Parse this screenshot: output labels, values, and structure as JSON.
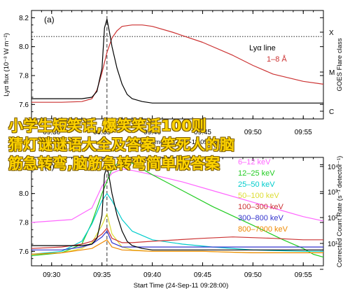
{
  "chart_data": [
    {
      "type": "line",
      "panel_label": "(a)",
      "xlabel": "Start Time (24-Sep-11 09:28:00)",
      "ylabel": "Lyα flux (10⁻³ W m⁻²)",
      "y2label": "GOES Flare class",
      "xlim": [
        "09:28",
        "09:57"
      ],
      "x_ticks": [
        "09:30",
        "09:35",
        "09:40",
        "09:45",
        "09:50",
        "09:55"
      ],
      "ylim": [
        7.5,
        8.25
      ],
      "y_ticks": [
        "7.6",
        "7.8",
        "8.0",
        "8.2"
      ],
      "goes_class_ticks": [
        "X",
        "M",
        "C"
      ],
      "ref_line_y": 8.07,
      "event_time": "09:35:30",
      "legend": [
        "Lyα line",
        "1–8 Å"
      ],
      "series": [
        {
          "name": "Lyα line",
          "color": "#000000",
          "x": [
            "09:28:00",
            "09:31:00",
            "09:33:00",
            "09:34:00",
            "09:34:30",
            "09:35:00",
            "09:35:15",
            "09:35:30",
            "09:35:45",
            "09:36:00",
            "09:36:30",
            "09:37:00",
            "09:37:30",
            "09:38:00",
            "09:39:00",
            "09:40:00",
            "09:42:00",
            "09:45:00",
            "09:50:00",
            "09:55:00",
            "09:57:00"
          ],
          "y": [
            7.64,
            7.64,
            7.64,
            7.65,
            7.69,
            7.85,
            8.13,
            8.19,
            8.1,
            8.0,
            7.85,
            7.74,
            7.67,
            7.64,
            7.62,
            7.61,
            7.61,
            7.61,
            7.61,
            7.61,
            7.61
          ]
        },
        {
          "name": "1–8 Å",
          "color": "#cc3333",
          "x": [
            "09:28:00",
            "09:31:00",
            "09:33:00",
            "09:34:00",
            "09:34:30",
            "09:35:00",
            "09:35:30",
            "09:36:00",
            "09:36:30",
            "09:37:00",
            "09:38:00",
            "09:39:00",
            "09:40:00",
            "09:42:00",
            "09:45:00",
            "09:48:00",
            "09:50:00",
            "09:52:00",
            "09:55:00",
            "09:57:00"
          ],
          "y": [
            7.615,
            7.615,
            7.62,
            7.64,
            7.7,
            7.82,
            7.96,
            8.06,
            8.11,
            8.14,
            8.15,
            8.15,
            8.14,
            8.1,
            8.03,
            7.94,
            7.87,
            7.81,
            7.76,
            7.74
          ]
        }
      ]
    },
    {
      "type": "line",
      "panel_label": "(b)",
      "xlabel": "Start Time (24-Sep-11 09:28:00)",
      "ylabel": "",
      "y2label": "Corrected Count Rate (s⁻¹ detector⁻¹)",
      "xlim": [
        "09:28",
        "09:57"
      ],
      "x_ticks": [
        "09:30",
        "09:35",
        "09:40",
        "09:45",
        "09:50",
        "09:55"
      ],
      "ylim": [
        7.5,
        8.25
      ],
      "y_ticks": [
        "7.6",
        "7.8",
        "8.0",
        "8.2"
      ],
      "y2_ticks": [
        "10⁴",
        "10³",
        "10²",
        "10¹",
        "10⁰"
      ],
      "event_time": "09:35:30",
      "series": [
        {
          "name": "Lyα line",
          "label": "",
          "color": "#000000",
          "x": [
            "09:28:00",
            "09:31:00",
            "09:33:00",
            "09:34:00",
            "09:34:30",
            "09:35:00",
            "09:35:15",
            "09:35:30",
            "09:35:45",
            "09:36:00",
            "09:36:30",
            "09:37:00",
            "09:37:30",
            "09:38:00",
            "09:39:00",
            "09:40:00",
            "09:42:00",
            "09:45:00",
            "09:50:00",
            "09:55:00",
            "09:57:00"
          ],
          "y": [
            7.64,
            7.64,
            7.64,
            7.65,
            7.69,
            7.85,
            8.13,
            8.19,
            8.1,
            8.0,
            7.85,
            7.74,
            7.67,
            7.64,
            7.62,
            7.61,
            7.61,
            7.61,
            7.61,
            7.61,
            7.61
          ]
        },
        {
          "name": "6–12 keV",
          "color": "#ff66ff",
          "x": [
            "09:28:00",
            "09:32:00",
            "09:34:00",
            "09:35:00",
            "09:36:00",
            "09:37:00",
            "09:38:00",
            "09:40:00",
            "09:43:00",
            "09:46:00",
            "09:50:00",
            "09:53:00",
            "09:55:00",
            "09:57:00"
          ],
          "y": [
            7.8,
            7.82,
            7.9,
            8.05,
            8.14,
            8.17,
            8.16,
            8.13,
            8.08,
            8.02,
            7.94,
            7.88,
            7.84,
            7.81
          ]
        },
        {
          "name": "12–25 keV",
          "color": "#22cc22",
          "x": [
            "09:28:00",
            "09:31:00",
            "09:33:00",
            "09:34:00",
            "09:35:00",
            "09:36:00",
            "09:37:00",
            "09:38:00",
            "09:40:00",
            "09:43:00",
            "09:46:00",
            "09:50:00",
            "09:53:00",
            "09:55:00",
            "09:56:00",
            "09:57:00"
          ],
          "y": [
            7.57,
            7.59,
            7.65,
            7.8,
            8.0,
            8.17,
            8.24,
            8.21,
            8.13,
            8.02,
            7.91,
            7.78,
            7.68,
            7.62,
            7.58,
            7.56
          ]
        },
        {
          "name": "25–50 keV",
          "color": "#00cccc",
          "x": [
            "09:28:00",
            "09:31:00",
            "09:33:00",
            "09:34:00",
            "09:35:00",
            "09:35:30",
            "09:36:00",
            "09:37:00",
            "09:38:00",
            "09:40:00",
            "09:43:00",
            "09:46:00",
            "09:50:00",
            "09:55:00",
            "09:57:00"
          ],
          "y": [
            7.58,
            7.6,
            7.67,
            7.79,
            7.95,
            8.0,
            7.95,
            7.82,
            7.74,
            7.68,
            7.65,
            7.63,
            7.61,
            7.6,
            7.6
          ]
        },
        {
          "name": "50–100 keV",
          "color": "#dddd33",
          "x": [
            "09:28:00",
            "09:31:00",
            "09:33:00",
            "09:34:00",
            "09:35:00",
            "09:35:30",
            "09:36:00",
            "09:37:00",
            "09:38:00",
            "09:40:00",
            "09:45:00",
            "09:50:00",
            "09:55:00",
            "09:57:00"
          ],
          "y": [
            7.58,
            7.59,
            7.62,
            7.66,
            7.78,
            7.86,
            7.72,
            7.63,
            7.61,
            7.6,
            7.6,
            7.59,
            7.59,
            7.59
          ]
        },
        {
          "name": "100–300 keV",
          "color": "#cc3333",
          "x": [
            "09:28:00",
            "09:31:00",
            "09:33:00",
            "09:34:00",
            "09:35:00",
            "09:35:30",
            "09:36:00",
            "09:37:00",
            "09:38:00",
            "09:40:00",
            "09:45:00",
            "09:48:00",
            "09:52:00",
            "09:55:00",
            "09:57:00"
          ],
          "y": [
            7.62,
            7.63,
            7.65,
            7.67,
            7.72,
            7.76,
            7.69,
            7.66,
            7.66,
            7.67,
            7.69,
            7.7,
            7.69,
            7.68,
            7.68
          ]
        },
        {
          "name": "300–800 keV",
          "color": "#3333cc",
          "x": [
            "09:28:00",
            "09:31:00",
            "09:33:00",
            "09:34:00",
            "09:35:00",
            "09:35:30",
            "09:36:00",
            "09:37:00",
            "09:40:00",
            "09:45:00",
            "09:50:00",
            "09:55:00",
            "09:57:00"
          ],
          "y": [
            7.61,
            7.61,
            7.63,
            7.65,
            7.7,
            7.74,
            7.66,
            7.63,
            7.63,
            7.63,
            7.63,
            7.63,
            7.63
          ]
        },
        {
          "name": "800–7000 keV",
          "color": "#ee8800",
          "x": [
            "09:28:00",
            "09:31:00",
            "09:33:00",
            "09:34:00",
            "09:35:00",
            "09:35:30",
            "09:36:00",
            "09:37:00",
            "09:40:00",
            "09:45:00",
            "09:50:00",
            "09:55:00",
            "09:57:00"
          ],
          "y": [
            7.58,
            7.59,
            7.61,
            7.62,
            7.66,
            7.68,
            7.63,
            7.61,
            7.6,
            7.6,
            7.59,
            7.59,
            7.59
          ]
        }
      ]
    }
  ],
  "overlay_lines": [
    "小学生短笑话,爆笑笑话100则",
    "猜灯谜谜语大全及答案,笑死人的脑",
    "筋急转弯,脑筋急转弯简单版答案"
  ]
}
